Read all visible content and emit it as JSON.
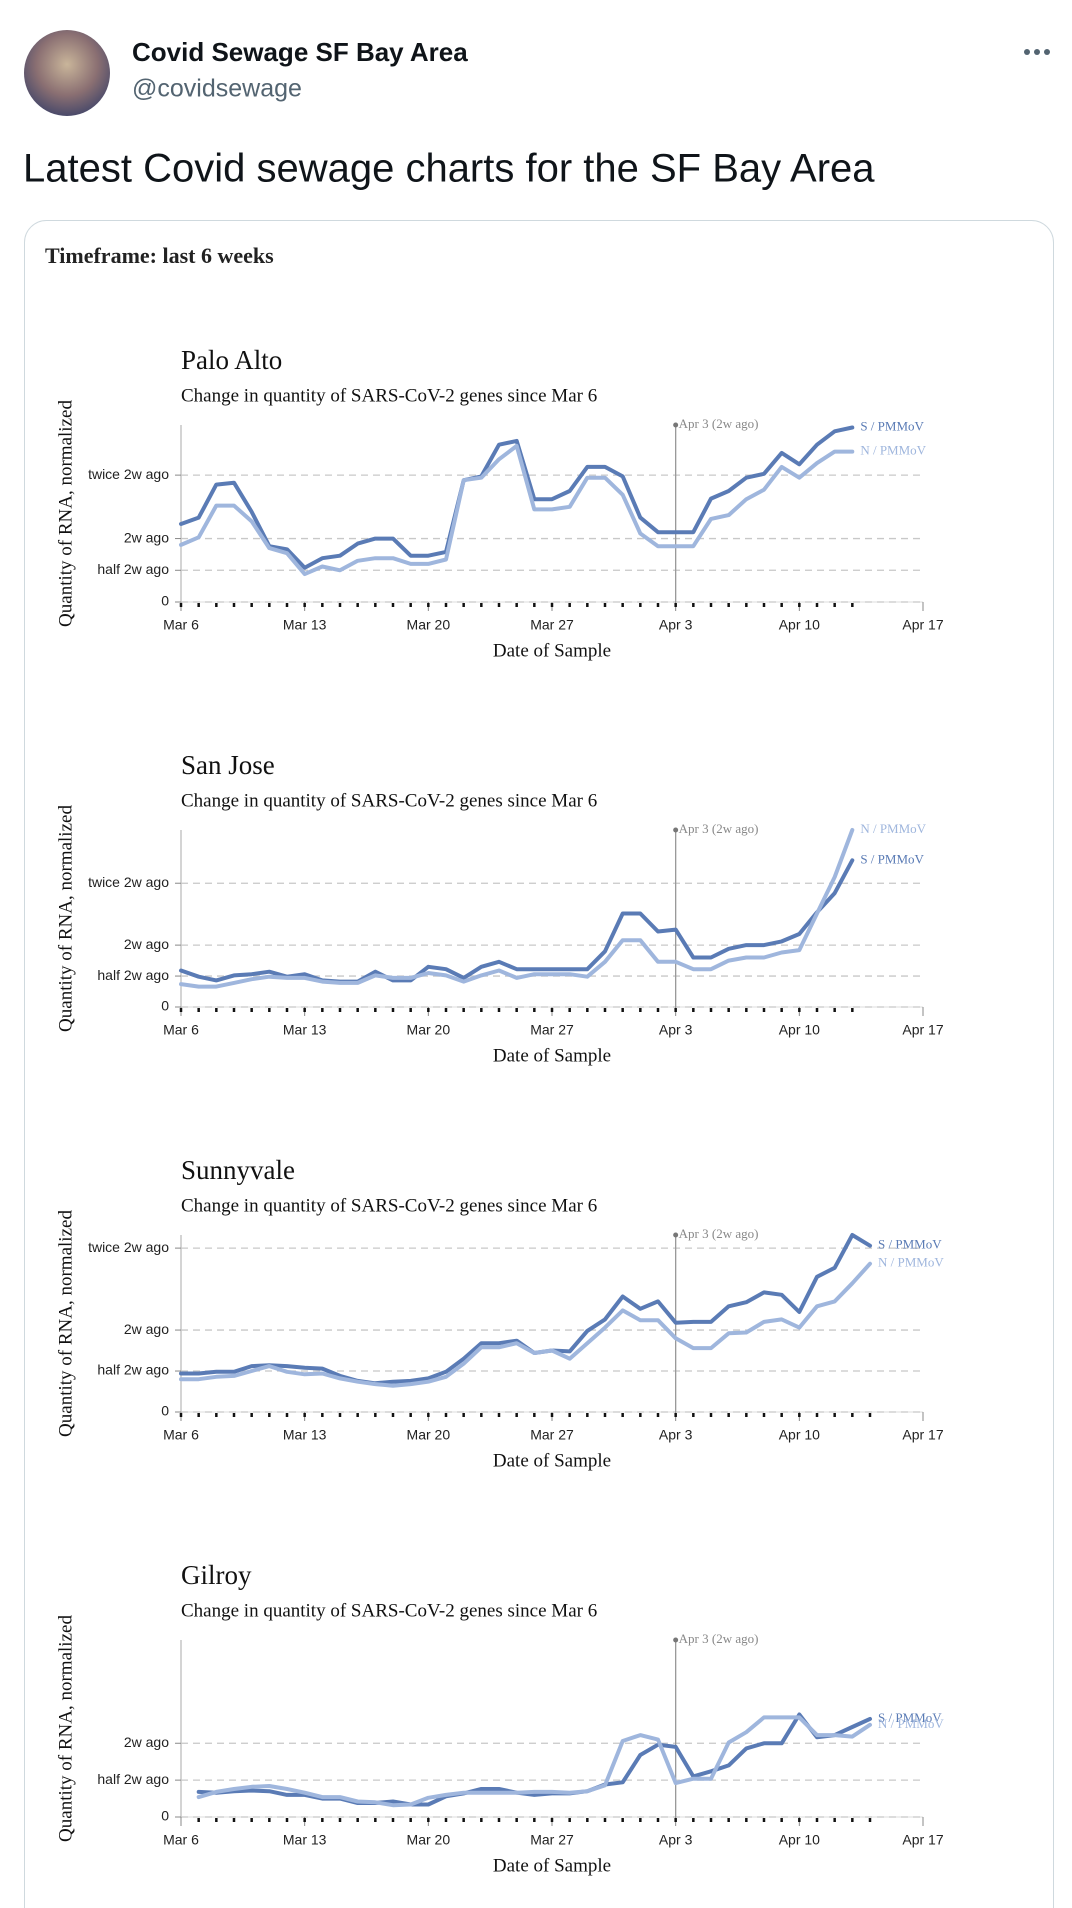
{
  "tweet": {
    "name": "Covid Sewage SF Bay Area",
    "handle": "@covidsewage",
    "text": "Latest Covid sewage charts for the SF Bay Area",
    "card_label": "Timeframe: last 6 weeks"
  },
  "chart_data": [
    {
      "type": "line",
      "title": "Palo Alto",
      "subtitle": "Change in quantity of SARS-CoV-2 genes since Mar 6",
      "xlabel": "Date of Sample",
      "ylabel": "Quantity of RNA, normalized",
      "x": [
        0,
        1,
        2,
        3,
        4,
        5,
        6,
        7,
        8,
        9,
        10,
        11,
        12,
        13,
        14,
        15,
        16,
        17,
        18,
        19,
        20,
        21,
        22,
        23,
        24,
        25,
        26,
        27,
        28,
        29,
        30,
        31,
        32,
        33,
        34,
        35,
        36,
        37,
        38
      ],
      "series": [
        {
          "name": "S / PMMoV",
          "color": "#5a7bb5",
          "values": [
            1.23,
            1.33,
            1.85,
            1.88,
            1.42,
            0.88,
            0.83,
            0.54,
            0.69,
            0.73,
            0.92,
            1.0,
            1.0,
            0.73,
            0.73,
            0.79,
            1.92,
            1.98,
            2.48,
            2.54,
            1.62,
            1.62,
            1.75,
            2.13,
            2.13,
            1.98,
            1.33,
            1.1,
            1.1,
            1.1,
            1.63,
            1.75,
            1.96,
            2.02,
            2.35,
            2.17,
            2.48,
            2.69,
            2.75
          ]
        },
        {
          "name": "N / PMMoV",
          "color": "#9fb6dd",
          "values": [
            0.9,
            1.02,
            1.52,
            1.52,
            1.27,
            0.85,
            0.77,
            0.44,
            0.56,
            0.5,
            0.65,
            0.69,
            0.69,
            0.6,
            0.6,
            0.67,
            1.92,
            1.96,
            2.25,
            2.46,
            1.46,
            1.46,
            1.5,
            1.96,
            1.96,
            1.69,
            1.08,
            0.88,
            0.88,
            0.88,
            1.31,
            1.37,
            1.62,
            1.77,
            2.13,
            1.96,
            2.19,
            2.37,
            2.37
          ]
        }
      ],
      "xlim": [
        0,
        42
      ],
      "xticks": [
        {
          "value": 0,
          "label": "Mar 6"
        },
        {
          "value": 7,
          "label": "Mar 13"
        },
        {
          "value": 14,
          "label": "Mar 20"
        },
        {
          "value": 21,
          "label": "Mar 27"
        },
        {
          "value": 28,
          "label": "Apr 3"
        },
        {
          "value": 35,
          "label": "Apr 10"
        },
        {
          "value": 42,
          "label": "Apr 17"
        }
      ],
      "ylim": [
        0,
        2.79
      ],
      "yticks": [
        0,
        {
          "value": 0.5,
          "label": "half 2w ago"
        },
        {
          "value": 1,
          "label": "2w ago"
        },
        {
          "value": 2,
          "label": "twice 2w ago"
        }
      ],
      "annotation": {
        "x": 28,
        "label": "Apr 3 (2w ago)"
      },
      "grid": true
    },
    {
      "type": "line",
      "title": "San Jose",
      "subtitle": "Change in quantity of SARS-CoV-2 genes since Mar 6",
      "xlabel": "Date of Sample",
      "ylabel": "Quantity of RNA, normalized",
      "x": [
        0,
        1,
        2,
        3,
        4,
        5,
        6,
        7,
        8,
        9,
        10,
        11,
        12,
        13,
        14,
        15,
        16,
        17,
        18,
        19,
        20,
        21,
        22,
        23,
        24,
        25,
        26,
        27,
        28,
        29,
        30,
        31,
        32,
        33,
        34,
        35,
        36,
        37,
        38
      ],
      "series": [
        {
          "name": "S / PMMoV",
          "color": "#5a7bb5",
          "values": [
            0.59,
            0.49,
            0.43,
            0.51,
            0.53,
            0.57,
            0.49,
            0.53,
            0.43,
            0.41,
            0.41,
            0.57,
            0.43,
            0.43,
            0.65,
            0.61,
            0.47,
            0.65,
            0.73,
            0.61,
            0.61,
            0.61,
            0.61,
            0.61,
            0.9,
            1.51,
            1.51,
            1.22,
            1.25,
            0.8,
            0.8,
            0.94,
            1.0,
            1.0,
            1.06,
            1.18,
            1.53,
            1.84,
            2.37
          ]
        },
        {
          "name": "N / PMMoV",
          "color": "#9fb6dd",
          "values": [
            0.37,
            0.33,
            0.33,
            0.39,
            0.45,
            0.49,
            0.47,
            0.47,
            0.41,
            0.39,
            0.39,
            0.51,
            0.47,
            0.47,
            0.55,
            0.51,
            0.41,
            0.51,
            0.59,
            0.47,
            0.53,
            0.53,
            0.53,
            0.49,
            0.73,
            1.08,
            1.08,
            0.73,
            0.73,
            0.61,
            0.61,
            0.75,
            0.8,
            0.8,
            0.88,
            0.92,
            1.51,
            2.1,
            2.86
          ]
        }
      ],
      "xlim": [
        0,
        42
      ],
      "xticks": [
        {
          "value": 0,
          "label": "Mar 6"
        },
        {
          "value": 7,
          "label": "Mar 13"
        },
        {
          "value": 14,
          "label": "Mar 20"
        },
        {
          "value": 21,
          "label": "Mar 27"
        },
        {
          "value": 28,
          "label": "Apr 3"
        },
        {
          "value": 35,
          "label": "Apr 10"
        },
        {
          "value": 42,
          "label": "Apr 17"
        }
      ],
      "ylim": [
        0,
        2.86
      ],
      "yticks": [
        0,
        {
          "value": 0.5,
          "label": "half 2w ago"
        },
        {
          "value": 1,
          "label": "2w ago"
        },
        {
          "value": 2,
          "label": "twice 2w ago"
        }
      ],
      "annotation": {
        "x": 28,
        "label": "Apr 3 (2w ago)"
      },
      "grid": true
    },
    {
      "type": "line",
      "title": "Sunnyvale",
      "subtitle": "Change in quantity of SARS-CoV-2 genes since Mar 6",
      "xlabel": "Date of Sample",
      "ylabel": "Quantity of RNA, normalized",
      "x": [
        0,
        1,
        2,
        3,
        4,
        5,
        6,
        7,
        8,
        9,
        10,
        11,
        12,
        13,
        14,
        15,
        16,
        17,
        18,
        19,
        20,
        21,
        22,
        23,
        24,
        25,
        26,
        27,
        28,
        29,
        30,
        31,
        32,
        33,
        34,
        35,
        36,
        37,
        38,
        39
      ],
      "series": [
        {
          "name": "S / PMMoV",
          "color": "#5a7bb5",
          "values": [
            0.47,
            0.47,
            0.49,
            0.49,
            0.56,
            0.57,
            0.56,
            0.54,
            0.53,
            0.44,
            0.38,
            0.35,
            0.37,
            0.38,
            0.41,
            0.49,
            0.65,
            0.84,
            0.84,
            0.87,
            0.72,
            0.75,
            0.74,
            0.99,
            1.13,
            1.41,
            1.26,
            1.35,
            1.09,
            1.1,
            1.1,
            1.29,
            1.34,
            1.46,
            1.43,
            1.22,
            1.65,
            1.76,
            2.16,
            2.03
          ]
        },
        {
          "name": "N / PMMoV",
          "color": "#9fb6dd",
          "values": [
            0.4,
            0.4,
            0.43,
            0.44,
            0.5,
            0.56,
            0.49,
            0.46,
            0.47,
            0.41,
            0.37,
            0.34,
            0.32,
            0.34,
            0.37,
            0.43,
            0.59,
            0.79,
            0.79,
            0.84,
            0.72,
            0.75,
            0.65,
            0.84,
            1.03,
            1.24,
            1.12,
            1.12,
            0.9,
            0.78,
            0.78,
            0.96,
            0.97,
            1.1,
            1.13,
            1.03,
            1.29,
            1.35,
            1.57,
            1.81
          ]
        }
      ],
      "xlim": [
        0,
        42
      ],
      "xticks": [
        {
          "value": 0,
          "label": "Mar 6"
        },
        {
          "value": 7,
          "label": "Mar 13"
        },
        {
          "value": 14,
          "label": "Mar 20"
        },
        {
          "value": 21,
          "label": "Mar 27"
        },
        {
          "value": 28,
          "label": "Apr 3"
        },
        {
          "value": 35,
          "label": "Apr 10"
        },
        {
          "value": 42,
          "label": "Apr 17"
        }
      ],
      "ylim": [
        0,
        2.16
      ],
      "yticks": [
        0,
        {
          "value": 0.5,
          "label": "half 2w ago"
        },
        {
          "value": 1,
          "label": "2w ago"
        },
        {
          "value": 2,
          "label": "twice 2w ago"
        }
      ],
      "annotation": {
        "x": 28,
        "label": "Apr 3 (2w ago)"
      },
      "grid": true
    },
    {
      "type": "line",
      "title": "Gilroy",
      "subtitle": "Change in quantity of SARS-CoV-2 genes since Mar 6",
      "xlabel": "Date of Sample",
      "ylabel": "Quantity of RNA, normalized",
      "x": [
        1,
        2,
        3,
        4,
        5,
        6,
        7,
        8,
        9,
        10,
        11,
        12,
        13,
        14,
        15,
        16,
        17,
        18,
        19,
        20,
        21,
        22,
        23,
        24,
        25,
        26,
        27,
        28,
        29,
        30,
        31,
        32,
        33,
        34,
        35,
        36,
        37,
        38,
        39
      ],
      "series": [
        {
          "name": "S / PMMoV",
          "color": "#5a7bb5",
          "values": [
            0.34,
            0.33,
            0.35,
            0.36,
            0.35,
            0.3,
            0.3,
            0.25,
            0.25,
            0.19,
            0.19,
            0.21,
            0.17,
            0.17,
            0.28,
            0.32,
            0.38,
            0.38,
            0.33,
            0.3,
            0.32,
            0.32,
            0.35,
            0.44,
            0.47,
            0.84,
            0.98,
            0.95,
            0.55,
            0.62,
            0.7,
            0.93,
            1.0,
            1.0,
            1.39,
            1.08,
            1.11,
            1.22,
            1.33
          ]
        },
        {
          "name": "N / PMMoV",
          "color": "#9fb6dd",
          "values": [
            0.27,
            0.34,
            0.38,
            0.41,
            0.42,
            0.38,
            0.33,
            0.27,
            0.27,
            0.21,
            0.2,
            0.16,
            0.17,
            0.26,
            0.3,
            0.33,
            0.33,
            0.33,
            0.33,
            0.34,
            0.34,
            0.33,
            0.35,
            0.43,
            1.03,
            1.11,
            1.05,
            0.46,
            0.52,
            0.52,
            1.01,
            1.15,
            1.35,
            1.35,
            1.35,
            1.11,
            1.11,
            1.09,
            1.25
          ]
        }
      ],
      "xlim": [
        0,
        42
      ],
      "xticks": [
        {
          "value": 0,
          "label": "Mar 6"
        },
        {
          "value": 7,
          "label": "Mar 13"
        },
        {
          "value": 14,
          "label": "Mar 20"
        },
        {
          "value": 21,
          "label": "Mar 27"
        },
        {
          "value": 28,
          "label": "Apr 3"
        },
        {
          "value": 35,
          "label": "Apr 10"
        },
        {
          "value": 42,
          "label": "Apr 17"
        }
      ],
      "ylim": [
        0,
        2.4
      ],
      "yticks": [
        0,
        {
          "value": 0.5,
          "label": "half 2w ago"
        },
        {
          "value": 1,
          "label": "2w ago"
        }
      ],
      "annotation": {
        "x": 28,
        "label": "Apr 3 (2w ago)"
      },
      "grid": true
    }
  ]
}
